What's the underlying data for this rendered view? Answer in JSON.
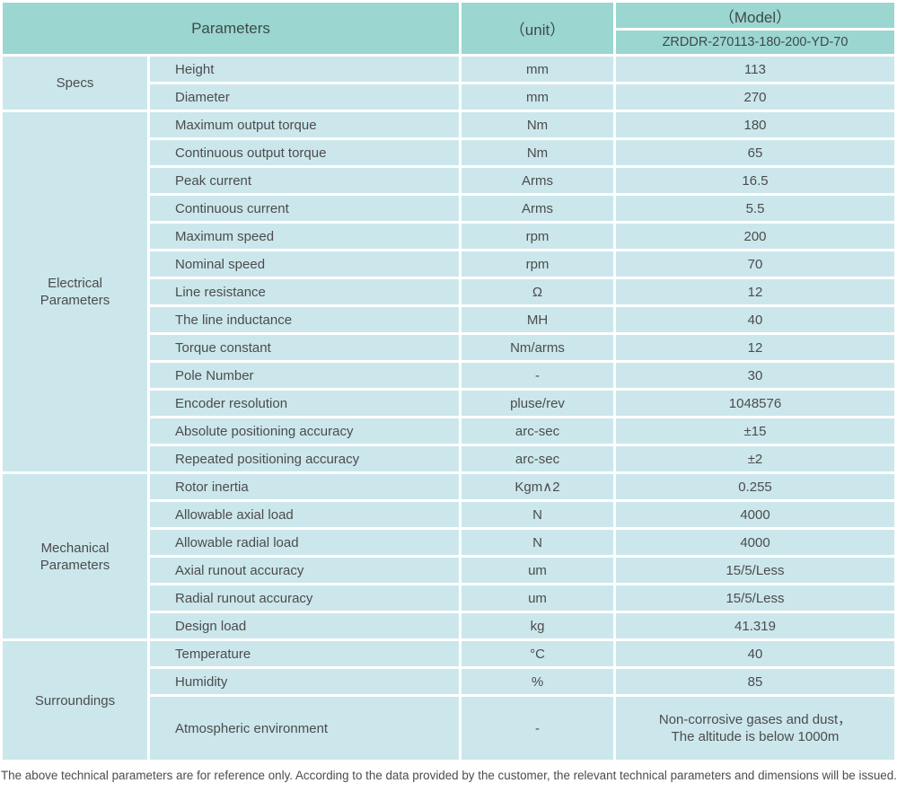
{
  "table": {
    "header": {
      "parameters_label": "Parameters",
      "unit_label": "（unit）",
      "model_label": "（Model）",
      "model_value": "ZRDDR-270113-180-200-YD-70"
    },
    "sections": [
      {
        "label": "Specs",
        "rows": [
          {
            "name": "Height",
            "unit": "mm",
            "value": "113"
          },
          {
            "name": "Diameter",
            "unit": "mm",
            "value": "270"
          }
        ]
      },
      {
        "label": "Electrical\nParameters",
        "rows": [
          {
            "name": "Maximum output torque",
            "unit": "Nm",
            "value": "180"
          },
          {
            "name": "Continuous output torque",
            "unit": "Nm",
            "value": "65"
          },
          {
            "name": "Peak current",
            "unit": "Arms",
            "value": "16.5"
          },
          {
            "name": "Continuous current",
            "unit": "Arms",
            "value": "5.5"
          },
          {
            "name": "Maximum speed",
            "unit": "rpm",
            "value": "200"
          },
          {
            "name": "Nominal speed",
            "unit": "rpm",
            "value": "70"
          },
          {
            "name": "Line resistance",
            "unit": "Ω",
            "value": "12"
          },
          {
            "name": "The line inductance",
            "unit": "MH",
            "value": "40"
          },
          {
            "name": "Torque constant",
            "unit": "Nm/arms",
            "value": "12"
          },
          {
            "name": "Pole Number",
            "unit": "-",
            "value": "30"
          },
          {
            "name": "Encoder resolution",
            "unit": "pluse/rev",
            "value": "1048576"
          },
          {
            "name": "Absolute positioning accuracy",
            "unit": "arc-sec",
            "value": "±15"
          },
          {
            "name": "Repeated positioning accuracy",
            "unit": "arc-sec",
            "value": "±2"
          }
        ]
      },
      {
        "label": "Mechanical\nParameters",
        "rows": [
          {
            "name": "Rotor inertia",
            "unit": "Kgm∧2",
            "value": "0.255"
          },
          {
            "name": "Allowable axial load",
            "unit": "N",
            "value": "4000"
          },
          {
            "name": "Allowable radial load",
            "unit": "N",
            "value": "4000"
          },
          {
            "name": "Axial runout accuracy",
            "unit": "um",
            "value": "15/5/Less"
          },
          {
            "name": "Radial runout accuracy",
            "unit": "um",
            "value": "15/5/Less"
          },
          {
            "name": "Design load",
            "unit": "kg",
            "value": "41.319"
          }
        ]
      },
      {
        "label": "Surroundings",
        "rows": [
          {
            "name": "Temperature",
            "unit": "°C",
            "value": "40"
          },
          {
            "name": "Humidity",
            "unit": "%",
            "value": "85"
          },
          {
            "name": "Atmospheric environment",
            "unit": "-",
            "value": "Non-corrosive gases and dust，\nThe altitude is below 1000m"
          }
        ]
      }
    ]
  },
  "footer": {
    "note": "The above technical parameters are for reference only. According to the data provided by the customer, the relevant technical parameters and dimensions will be issued."
  },
  "colors": {
    "header_bg": "#9bd6d0",
    "row_bg": "#cbe7ec",
    "grid": "#ffffff",
    "text": "#4c4c4c"
  }
}
